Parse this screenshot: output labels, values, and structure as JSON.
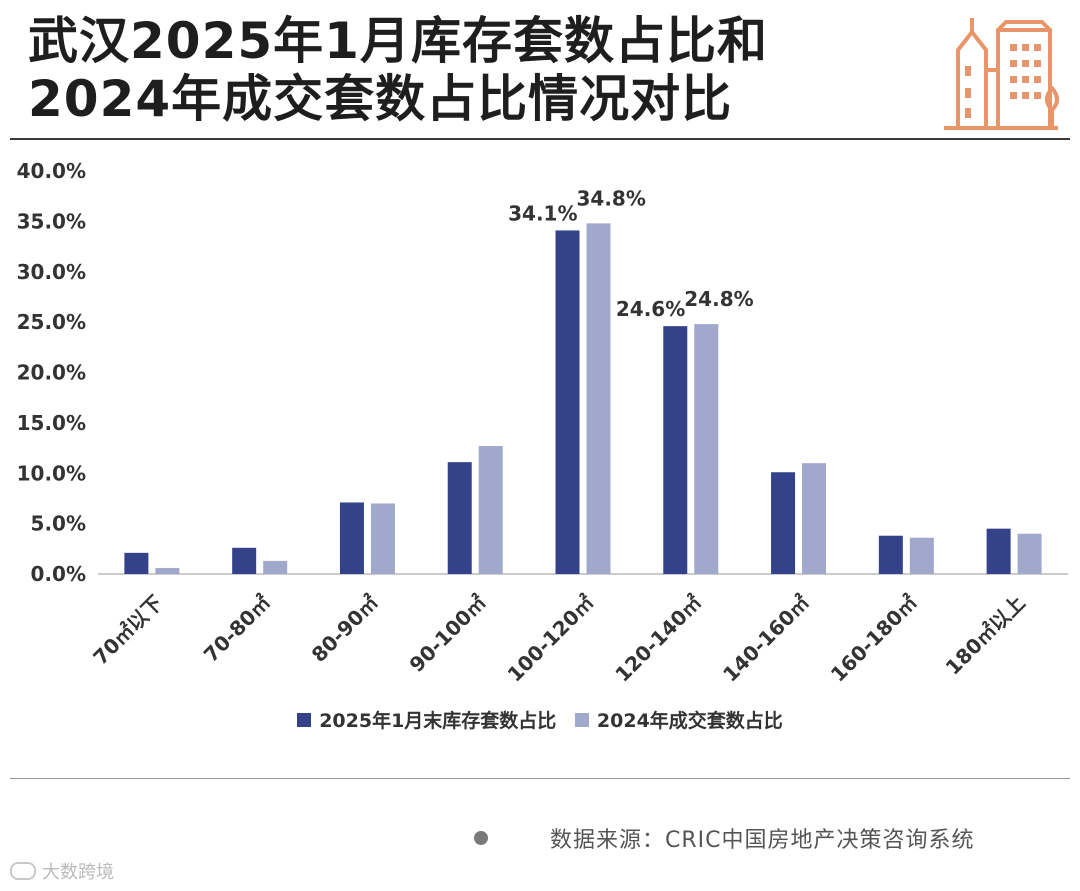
{
  "title": {
    "line1": "武汉2025年1月库存套数占比和",
    "line2": "2024年成交套数占比情况对比"
  },
  "header_icon": "building-icon",
  "colors": {
    "series_2025": "#34428a",
    "series_2024": "#a0a8cc",
    "accent_icon": "#e8956a",
    "axis_line": "#bbbbbb"
  },
  "chart_data": {
    "type": "bar",
    "categories": [
      "70㎡以下",
      "70-80㎡",
      "80-90㎡",
      "90-100㎡",
      "100-120㎡",
      "120-140㎡",
      "140-160㎡",
      "160-180㎡",
      "180㎡以上"
    ],
    "series": [
      {
        "name": "2025年1月末库存套数占比",
        "values": [
          2.1,
          2.6,
          7.1,
          11.1,
          34.1,
          24.6,
          10.1,
          3.8,
          4.5
        ]
      },
      {
        "name": "2024年成交套数占比",
        "values": [
          0.6,
          1.3,
          7.0,
          12.7,
          34.8,
          24.8,
          11.0,
          3.6,
          4.0
        ]
      }
    ],
    "data_labels": [
      {
        "series": 0,
        "index": 4,
        "text": "34.1%"
      },
      {
        "series": 1,
        "index": 4,
        "text": "34.8%"
      },
      {
        "series": 0,
        "index": 5,
        "text": "24.6%"
      },
      {
        "series": 1,
        "index": 5,
        "text": "24.8%"
      }
    ],
    "y_ticks": [
      "0.0%",
      "5.0%",
      "10.0%",
      "15.0%",
      "20.0%",
      "25.0%",
      "30.0%",
      "35.0%",
      "40.0%"
    ],
    "ylim": [
      0,
      40
    ],
    "grid": false,
    "legend_position": "bottom",
    "title": "",
    "xlabel": "",
    "ylabel": ""
  },
  "legend": {
    "item1": "2025年1月末库存套数占比",
    "item2": "2024年成交套数占比"
  },
  "source": {
    "text": "数据来源：CRIC中国房地产决策咨询系统"
  },
  "watermark": {
    "text": "大数跨境"
  }
}
